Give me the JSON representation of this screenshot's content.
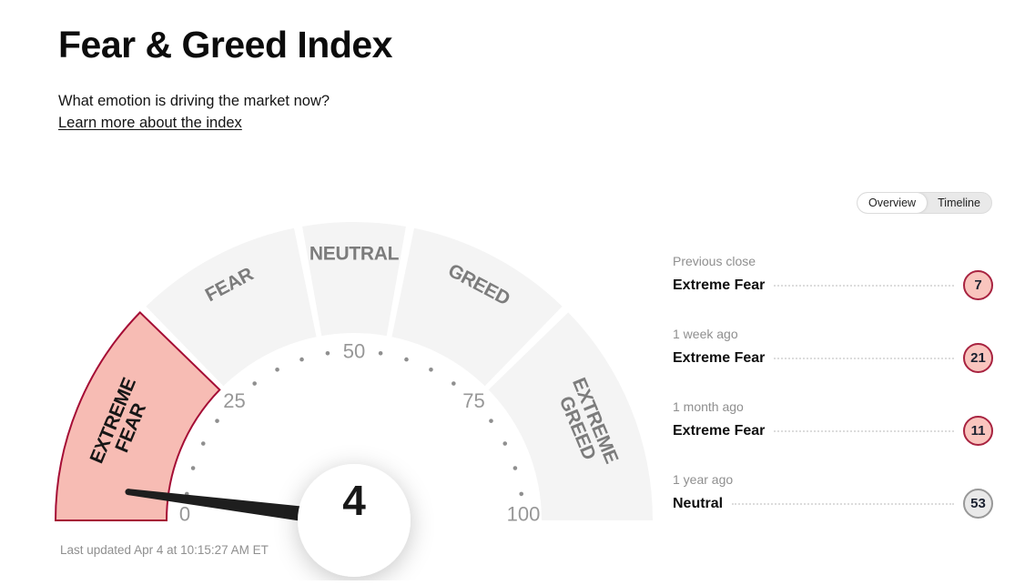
{
  "page": {
    "title": "Fear & Greed Index",
    "subtitle": "What emotion is driving the market now?",
    "learn_more": "Learn more about the index",
    "last_updated": "Last updated Apr 4 at 10:15:27 AM ET"
  },
  "tabs": {
    "overview": "Overview",
    "timeline": "Timeline",
    "active": "Overview"
  },
  "gauge": {
    "value": 4,
    "value_label": "4",
    "min": 0,
    "max": 100,
    "number_ticks": [
      0,
      25,
      50,
      75,
      100
    ],
    "dot_tick_step": 5,
    "segments": [
      {
        "id": "extreme-fear",
        "lines": [
          "EXTREME",
          "FEAR"
        ],
        "from": 0,
        "to": 25,
        "highlighted": true
      },
      {
        "id": "fear",
        "lines": [
          "FEAR"
        ],
        "from": 25,
        "to": 44,
        "highlighted": false
      },
      {
        "id": "neutral",
        "lines": [
          "NEUTRAL"
        ],
        "from": 44,
        "to": 56,
        "highlighted": false
      },
      {
        "id": "greed",
        "lines": [
          "GREED"
        ],
        "from": 56,
        "to": 75,
        "highlighted": false
      },
      {
        "id": "extreme-greed",
        "lines": [
          "EXTREME",
          "GREED"
        ],
        "from": 75,
        "to": 100,
        "highlighted": false
      }
    ],
    "colors": {
      "segment_fill": "#f4f4f4",
      "highlight_fill": "#f7bcb4",
      "highlight_stroke": "#a50d35",
      "segment_label": "#7c7c7c",
      "highlight_label": "#161616",
      "dot_tick": "#8f8f8f",
      "number": "#979797",
      "needle": "#1e1e1e",
      "value_text": "#181818"
    }
  },
  "history": [
    {
      "period": "Previous close",
      "rating": "Extreme Fear",
      "value": "7",
      "tone": "fear"
    },
    {
      "period": "1 week ago",
      "rating": "Extreme Fear",
      "value": "21",
      "tone": "fear"
    },
    {
      "period": "1 month ago",
      "rating": "Extreme Fear",
      "value": "11",
      "tone": "fear"
    },
    {
      "period": "1 year ago",
      "rating": "Neutral",
      "value": "53",
      "tone": "neutral"
    }
  ],
  "chart_data": {
    "type": "gauge",
    "title": "Fear & Greed Index",
    "value": 4,
    "current_rating": "Extreme Fear",
    "axis_range": [
      0,
      100
    ],
    "axis_ticks": [
      0,
      25,
      50,
      75,
      100
    ],
    "minor_tick_step": 5,
    "segments": [
      {
        "label": "Extreme Fear",
        "range": [
          0,
          25
        ]
      },
      {
        "label": "Fear",
        "range": [
          25,
          44
        ]
      },
      {
        "label": "Neutral",
        "range": [
          44,
          56
        ]
      },
      {
        "label": "Greed",
        "range": [
          56,
          75
        ]
      },
      {
        "label": "Extreme Greed",
        "range": [
          75,
          100
        ]
      }
    ],
    "history": [
      {
        "period": "Previous close",
        "rating": "Extreme Fear",
        "value": 7
      },
      {
        "period": "1 week ago",
        "rating": "Extreme Fear",
        "value": 21
      },
      {
        "period": "1 month ago",
        "rating": "Extreme Fear",
        "value": 11
      },
      {
        "period": "1 year ago",
        "rating": "Neutral",
        "value": 53
      }
    ]
  }
}
